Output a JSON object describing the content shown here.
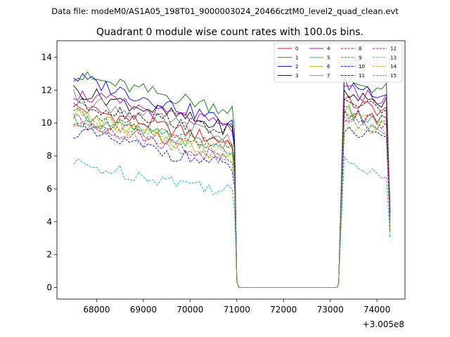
{
  "chart_data": {
    "type": "line",
    "suptitle": "Data file: modeM0/AS1A05_198T01_9000003024_20466cztM0_level2_quad_clean.evt",
    "title": "Quadrant 0 module wise count rates with 100.0s bins.",
    "xlabel": "",
    "ylabel": "",
    "x_offset_label": "+3.005e8",
    "xlim": [
      67150,
      74600
    ],
    "ylim": [
      -0.7,
      15
    ],
    "xticks": [
      68000,
      69000,
      70000,
      71000,
      72000,
      73000,
      74000
    ],
    "xtick_labels": [
      "68000",
      "69000",
      "70000",
      "71000",
      "72000",
      "73000",
      "74000"
    ],
    "yticks": [
      0,
      2,
      4,
      6,
      8,
      10,
      12,
      14
    ],
    "ytick_labels": [
      "0",
      "2",
      "4",
      "6",
      "8",
      "10",
      "12",
      "14"
    ],
    "legend_position": "upper right",
    "segments": [
      {
        "x_start": 67500,
        "x_end": 70900,
        "step": 100
      },
      {
        "x_start": 73300,
        "x_end": 74200,
        "step": 100
      }
    ],
    "series": [
      {
        "name": "0",
        "color": "#ff0000",
        "dash": false,
        "start_level": 11.0,
        "end_level": 8.8,
        "high_level": 11.3,
        "drop_value": 5.2
      },
      {
        "name": "1",
        "color": "#008000",
        "dash": false,
        "start_level": 12.9,
        "end_level": 10.8,
        "high_level": 12.6,
        "drop_value": 3.4
      },
      {
        "name": "2",
        "color": "#0000ff",
        "dash": false,
        "start_level": 12.8,
        "end_level": 10.0,
        "high_level": 12.4,
        "drop_value": 4.0
      },
      {
        "name": "3",
        "color": "#000000",
        "dash": false,
        "start_level": 12.0,
        "end_level": 9.6,
        "high_level": 11.8,
        "drop_value": 4.6
      },
      {
        "name": "4",
        "color": "#bf00bf",
        "dash": false,
        "start_level": 11.8,
        "end_level": 9.7,
        "high_level": 12.0,
        "drop_value": 4.5
      },
      {
        "name": "5",
        "color": "#00bf7f",
        "dash": false,
        "start_level": 10.3,
        "end_level": 8.4,
        "high_level": 10.6,
        "drop_value": 4.3
      },
      {
        "name": "6",
        "color": "#bfbf00",
        "dash": false,
        "start_level": 10.6,
        "end_level": 7.9,
        "high_level": 10.8,
        "drop_value": 4.4
      },
      {
        "name": "7",
        "color": "#808080",
        "dash": false,
        "start_level": 11.6,
        "end_level": 9.0,
        "high_level": 13.8,
        "drop_value": 5.0
      },
      {
        "name": "8",
        "color": "#ff0000",
        "dash": true,
        "start_level": 10.1,
        "end_level": 8.5,
        "high_level": 10.6,
        "drop_value": 4.2
      },
      {
        "name": "9",
        "color": "#008000",
        "dash": true,
        "start_level": 10.5,
        "end_level": 8.6,
        "high_level": 10.3,
        "drop_value": 3.8
      },
      {
        "name": "10",
        "color": "#0000ff",
        "dash": true,
        "start_level": 9.5,
        "end_level": 7.3,
        "high_level": 9.5,
        "drop_value": 3.7
      },
      {
        "name": "11",
        "color": "#000000",
        "dash": true,
        "start_level": 11.2,
        "end_level": 9.5,
        "high_level": 11.4,
        "drop_value": 4.3
      },
      {
        "name": "12",
        "color": "#bf00bf",
        "dash": true,
        "start_level": 10.2,
        "end_level": 7.8,
        "high_level": 10.6,
        "drop_value": 4.6
      },
      {
        "name": "13",
        "color": "#00bfbf",
        "dash": true,
        "start_level": 7.5,
        "end_level": 5.9,
        "high_level": 7.6,
        "drop_value": 3.0
      },
      {
        "name": "14",
        "color": "#bfbf00",
        "dash": true,
        "start_level": 10.2,
        "end_level": 8.1,
        "high_level": 10.0,
        "drop_value": 3.6
      },
      {
        "name": "15",
        "color": "#808080",
        "dash": true,
        "start_level": 9.9,
        "end_level": 7.7,
        "high_level": 10.2,
        "drop_value": 3.5
      }
    ]
  }
}
